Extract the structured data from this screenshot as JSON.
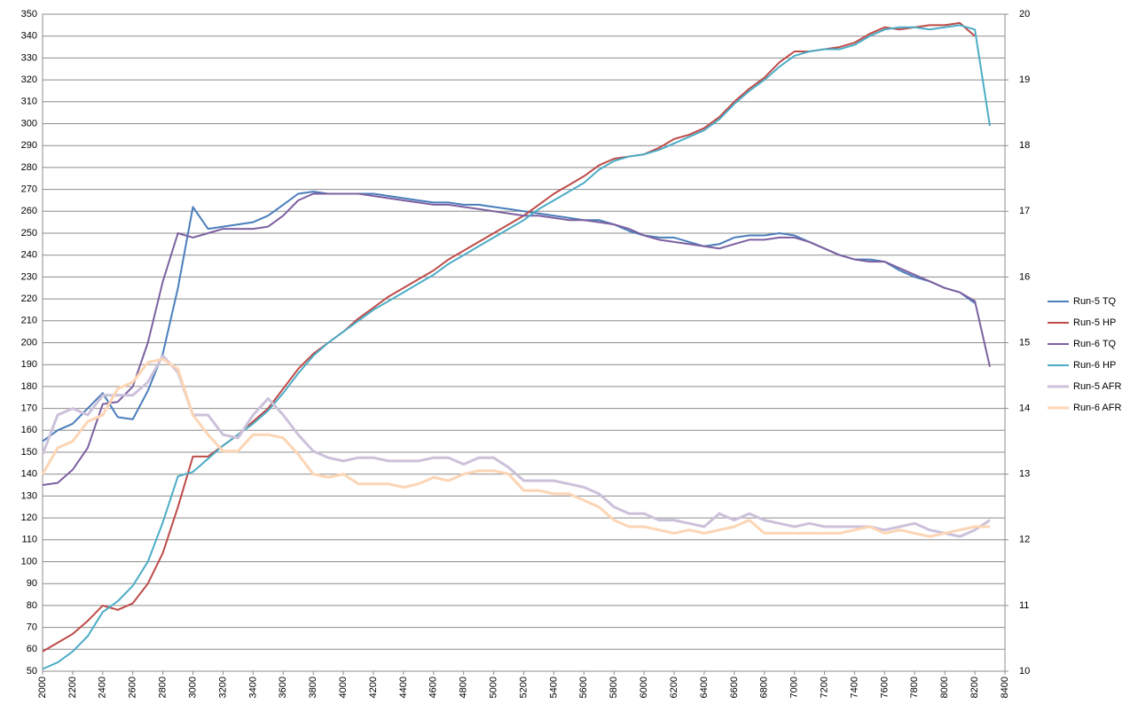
{
  "chart_data": {
    "type": "line",
    "x": [
      2000,
      2100,
      2200,
      2300,
      2400,
      2500,
      2600,
      2700,
      2800,
      2900,
      3000,
      3100,
      3200,
      3300,
      3400,
      3500,
      3600,
      3700,
      3800,
      3900,
      4000,
      4100,
      4200,
      4300,
      4400,
      4500,
      4600,
      4700,
      4800,
      4900,
      5000,
      5100,
      5200,
      5300,
      5400,
      5500,
      5600,
      5700,
      5800,
      5900,
      6000,
      6100,
      6200,
      6300,
      6400,
      6500,
      6600,
      6700,
      6800,
      6900,
      7000,
      7100,
      7200,
      7300,
      7400,
      7500,
      7600,
      7700,
      7800,
      7900,
      8000,
      8100,
      8200,
      8300
    ],
    "series": [
      {
        "name": "Run-5 TQ",
        "color": "#4a7ebb",
        "values": [
          155,
          160,
          163,
          170,
          177,
          166,
          165,
          178,
          195,
          225,
          262,
          252,
          253,
          254,
          255,
          258,
          263,
          268,
          269,
          268,
          268,
          268,
          268,
          267,
          266,
          265,
          264,
          264,
          263,
          263,
          262,
          261,
          260,
          259,
          258,
          257,
          256,
          256,
          254,
          251,
          249,
          248,
          248,
          246,
          244,
          245,
          248,
          249,
          249,
          250,
          249,
          246,
          243,
          240,
          238,
          238,
          237,
          233,
          230,
          228,
          225,
          223,
          218,
          null
        ]
      },
      {
        "name": "Run-5 HP",
        "color": "#be4b48",
        "values": [
          59,
          63,
          67,
          73,
          80,
          78,
          81,
          90,
          104,
          125,
          148,
          148,
          153,
          158,
          164,
          170,
          179,
          188,
          195,
          200,
          205,
          211,
          216,
          221,
          225,
          229,
          233,
          238,
          242,
          246,
          250,
          254,
          258,
          263,
          268,
          272,
          276,
          281,
          284,
          285,
          286,
          289,
          293,
          295,
          298,
          303,
          310,
          316,
          321,
          328,
          333,
          333,
          334,
          335,
          337,
          341,
          344,
          343,
          344,
          345,
          345,
          346,
          340,
          null
        ]
      },
      {
        "name": "Run-6 TQ",
        "color": "#7d60a0",
        "values": [
          135,
          136,
          142,
          152,
          172,
          173,
          180,
          200,
          228,
          250,
          248,
          250,
          252,
          252,
          252,
          253,
          258,
          265,
          268,
          268,
          268,
          268,
          267,
          266,
          265,
          264,
          263,
          263,
          262,
          261,
          260,
          259,
          258,
          258,
          257,
          256,
          256,
          255,
          254,
          252,
          249,
          247,
          246,
          245,
          244,
          243,
          245,
          247,
          247,
          248,
          248,
          246,
          243,
          240,
          238,
          237,
          237,
          234,
          231,
          228,
          225,
          223,
          219,
          189
        ]
      },
      {
        "name": "Run-6 HP",
        "color": "#4bacc6",
        "values": [
          51,
          54,
          59,
          66,
          77,
          82,
          89,
          100,
          118,
          139,
          141,
          147,
          153,
          158,
          163,
          169,
          177,
          186,
          194,
          200,
          205,
          210,
          215,
          219,
          223,
          227,
          231,
          236,
          240,
          244,
          248,
          252,
          256,
          261,
          265,
          269,
          273,
          279,
          283,
          285,
          286,
          288,
          291,
          294,
          297,
          302,
          309,
          315,
          320,
          326,
          331,
          333,
          334,
          334,
          336,
          340,
          343,
          344,
          344,
          343,
          344,
          345,
          343,
          299
        ]
      },
      {
        "name": "Run-5 AFR",
        "color": "#ccc1da",
        "axis": "y2",
        "values": [
          13.3,
          13.9,
          14.0,
          13.9,
          14.2,
          14.2,
          14.2,
          14.4,
          14.8,
          14.55,
          13.9,
          13.9,
          13.6,
          13.55,
          13.9,
          14.15,
          13.9,
          13.6,
          13.35,
          13.25,
          13.2,
          13.25,
          13.25,
          13.2,
          13.2,
          13.2,
          13.25,
          13.25,
          13.15,
          13.25,
          13.25,
          13.1,
          12.9,
          12.9,
          12.9,
          12.85,
          12.8,
          12.7,
          12.5,
          12.4,
          12.4,
          12.3,
          12.3,
          12.25,
          12.2,
          12.4,
          12.3,
          12.4,
          12.3,
          12.25,
          12.2,
          12.25,
          12.2,
          12.2,
          12.2,
          12.2,
          12.15,
          12.2,
          12.25,
          12.15,
          12.1,
          12.05,
          12.15,
          12.3
        ]
      },
      {
        "name": "Run-6 AFR",
        "color": "#fcd5b5",
        "axis": "y2",
        "values": [
          13.0,
          13.4,
          13.5,
          13.8,
          13.9,
          14.3,
          14.4,
          14.7,
          14.75,
          14.6,
          13.9,
          13.6,
          13.35,
          13.35,
          13.6,
          13.6,
          13.55,
          13.3,
          13.0,
          12.95,
          13.0,
          12.85,
          12.85,
          12.85,
          12.8,
          12.85,
          12.95,
          12.9,
          13.0,
          13.05,
          13.05,
          13.0,
          12.75,
          12.75,
          12.7,
          12.7,
          12.6,
          12.5,
          12.3,
          12.2,
          12.2,
          12.15,
          12.1,
          12.15,
          12.1,
          12.15,
          12.2,
          12.3,
          12.1,
          12.1,
          12.1,
          12.1,
          12.1,
          12.1,
          12.15,
          12.2,
          12.1,
          12.15,
          12.1,
          12.05,
          12.1,
          12.15,
          12.2,
          12.2
        ]
      }
    ],
    "xlim": [
      2000,
      8400
    ],
    "xticks": [
      2000,
      2200,
      2400,
      2600,
      2800,
      3000,
      3200,
      3400,
      3600,
      3800,
      4000,
      4200,
      4400,
      4600,
      4800,
      5000,
      5200,
      5400,
      5600,
      5800,
      6000,
      6200,
      6400,
      6600,
      6800,
      7000,
      7200,
      7400,
      7600,
      7800,
      8000,
      8200,
      8400
    ],
    "ylim": [
      50,
      350
    ],
    "yticks": [
      50,
      60,
      70,
      80,
      90,
      100,
      110,
      120,
      130,
      140,
      150,
      160,
      170,
      180,
      190,
      200,
      210,
      220,
      230,
      240,
      250,
      260,
      270,
      280,
      290,
      300,
      310,
      320,
      330,
      340,
      350
    ],
    "y2lim": [
      10,
      20
    ],
    "y2ticks": [
      10,
      11,
      12,
      13,
      14,
      15,
      16,
      17,
      18,
      19,
      20
    ],
    "grid": true,
    "legend": "right"
  }
}
